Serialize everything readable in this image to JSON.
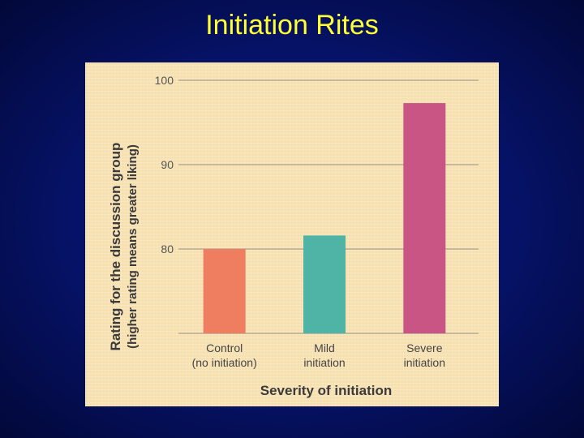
{
  "slide": {
    "title": "Initiation Rites"
  },
  "chart_data": {
    "type": "bar",
    "categories": [
      [
        "Control",
        "(no initiation)"
      ],
      [
        "Mild",
        "initiation"
      ],
      [
        "Severe",
        "initiation"
      ]
    ],
    "values": [
      80,
      81.6,
      97.3
    ],
    "bar_colors": [
      "#ef7d5f",
      "#4fb3a6",
      "#c95584"
    ],
    "xlabel": "Severity of initiation",
    "ylabel": [
      "Rating for the discussion group",
      "(higher rating means greater liking)"
    ],
    "ylim": [
      70,
      100
    ],
    "yticks": [
      80,
      90,
      100
    ],
    "grid": true
  }
}
